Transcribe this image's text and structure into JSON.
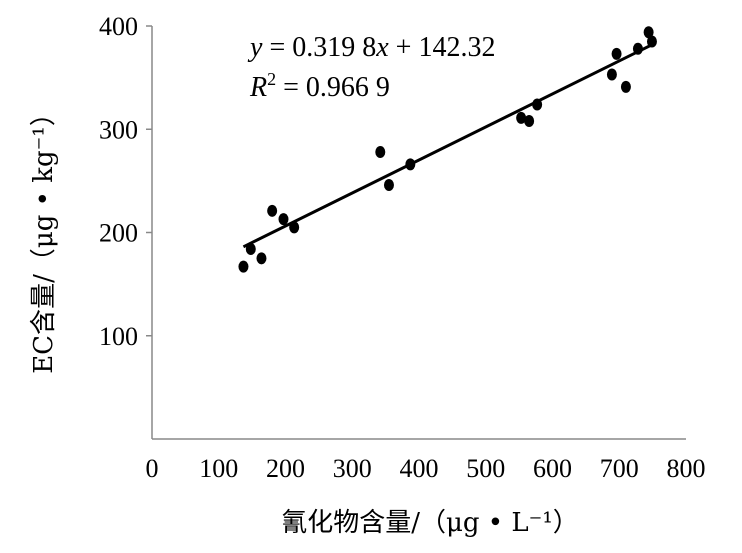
{
  "chart_data": {
    "type": "scatter",
    "xlabel": "氰化物含量/（μg • L⁻¹）",
    "ylabel": "EC含量/（μg • kg⁻¹）",
    "xlim": [
      0,
      800
    ],
    "ylim": [
      0,
      400
    ],
    "x_ticks": [
      "0",
      "100",
      "200",
      "300",
      "400",
      "500",
      "600",
      "700",
      "800"
    ],
    "y_ticks": [
      "100",
      "200",
      "300",
      "400"
    ],
    "y_tick_values": [
      100,
      200,
      300,
      400
    ],
    "grid": false,
    "legend": "none",
    "points": [
      {
        "x": 137,
        "y": 167
      },
      {
        "x": 148,
        "y": 184
      },
      {
        "x": 164,
        "y": 175
      },
      {
        "x": 180,
        "y": 221
      },
      {
        "x": 197,
        "y": 213
      },
      {
        "x": 213,
        "y": 205
      },
      {
        "x": 342,
        "y": 278
      },
      {
        "x": 355,
        "y": 246
      },
      {
        "x": 387,
        "y": 266
      },
      {
        "x": 553,
        "y": 311
      },
      {
        "x": 565,
        "y": 308
      },
      {
        "x": 577,
        "y": 324
      },
      {
        "x": 689,
        "y": 353
      },
      {
        "x": 696,
        "y": 373
      },
      {
        "x": 710,
        "y": 341
      },
      {
        "x": 728,
        "y": 378
      },
      {
        "x": 744,
        "y": 394
      },
      {
        "x": 749,
        "y": 385
      }
    ],
    "trendline": {
      "slope": 0.3198,
      "intercept": 142.32,
      "x_range": [
        137,
        752
      ],
      "equation_parts": {
        "lhs": "y",
        "eq": " = 0.319 8",
        "var": "x",
        "rest": " + 142.32"
      },
      "r2_parts": {
        "lhs": "R",
        "sup": "2",
        "rest": " = 0.966 9"
      }
    },
    "series_color": "#000000"
  }
}
